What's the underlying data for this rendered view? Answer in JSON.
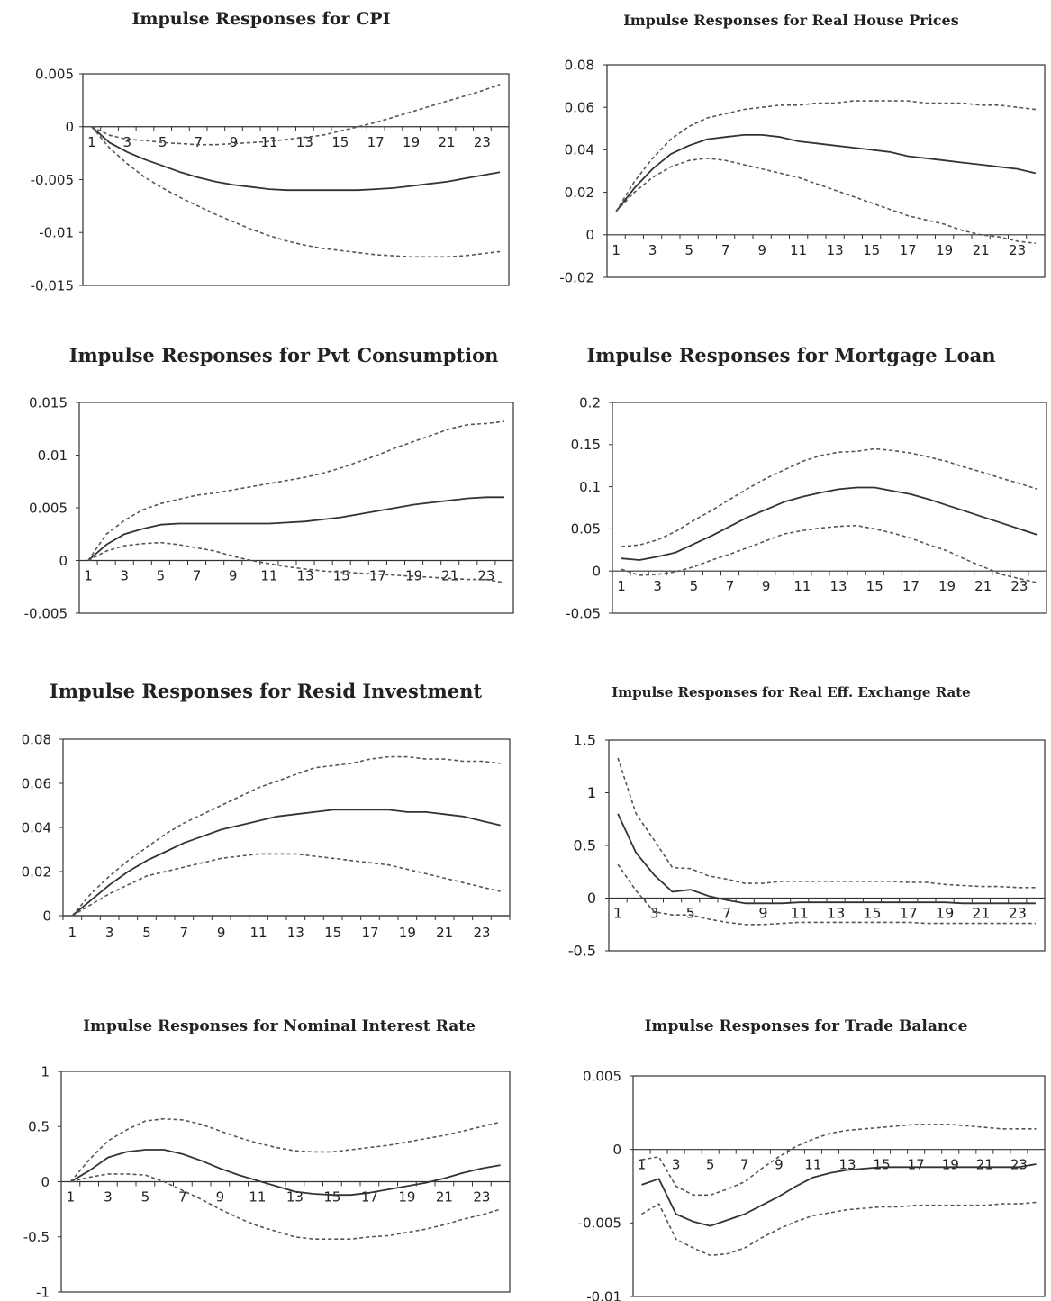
{
  "chart_data": [
    {
      "type": "line",
      "title": "Impulse Responses for CPI",
      "x": [
        1,
        2,
        3,
        4,
        5,
        6,
        7,
        8,
        9,
        10,
        11,
        12,
        13,
        14,
        15,
        16,
        17,
        18,
        19,
        20,
        21,
        22,
        23,
        24
      ],
      "x_ticks": [
        "1",
        "3",
        "5",
        "7",
        "9",
        "11",
        "13",
        "15",
        "17",
        "19",
        "21",
        "23"
      ],
      "y_ticks": [
        "0.005",
        "0",
        "-0.005",
        "-0.01",
        "-0.015"
      ],
      "ylim": [
        -0.015,
        0.005
      ],
      "grid": false,
      "series": [
        {
          "values": [
            0,
            -0.0015,
            -0.0024,
            -0.0031,
            -0.0037,
            -0.0043,
            -0.0048,
            -0.0052,
            -0.0055,
            -0.0057,
            -0.0059,
            -0.006,
            -0.006,
            -0.006,
            -0.006,
            -0.006,
            -0.0059,
            -0.0058,
            -0.0056,
            -0.0054,
            -0.0052,
            -0.0049,
            -0.0046,
            -0.0043
          ]
        },
        {
          "values": [
            0,
            -0.0008,
            -0.0012,
            -0.0013,
            -0.0015,
            -0.0016,
            -0.0017,
            -0.0017,
            -0.0016,
            -0.0015,
            -0.0014,
            -0.0012,
            -0.001,
            -0.0008,
            -0.0004,
            0,
            0.0004,
            0.0009,
            0.0014,
            0.0019,
            0.0024,
            0.0029,
            0.0034,
            0.004
          ]
        },
        {
          "values": [
            0,
            -0.002,
            -0.0035,
            -0.0048,
            -0.0058,
            -0.0067,
            -0.0075,
            -0.0083,
            -0.009,
            -0.0097,
            -0.0103,
            -0.0108,
            -0.0112,
            -0.0115,
            -0.0117,
            -0.0119,
            -0.0121,
            -0.0122,
            -0.0123,
            -0.0123,
            -0.0123,
            -0.0122,
            -0.012,
            -0.0118
          ]
        }
      ]
    },
    {
      "type": "line",
      "title": "Impulse Responses for Real House Prices",
      "x": [
        1,
        2,
        3,
        4,
        5,
        6,
        7,
        8,
        9,
        10,
        11,
        12,
        13,
        14,
        15,
        16,
        17,
        18,
        19,
        20,
        21,
        22,
        23,
        24
      ],
      "x_ticks": [
        "1",
        "3",
        "5",
        "7",
        "9",
        "11",
        "13",
        "15",
        "17",
        "19",
        "21",
        "23"
      ],
      "y_ticks": [
        "0.08",
        "0.06",
        "0.04",
        "0.02",
        "0",
        "-0.02"
      ],
      "ylim": [
        -0.02,
        0.08
      ],
      "grid": false,
      "series": [
        {
          "values": [
            0.011,
            0.022,
            0.031,
            0.038,
            0.042,
            0.045,
            0.046,
            0.047,
            0.047,
            0.046,
            0.044,
            0.043,
            0.042,
            0.041,
            0.04,
            0.039,
            0.037,
            0.036,
            0.035,
            0.034,
            0.033,
            0.032,
            0.031,
            0.029
          ]
        },
        {
          "values": [
            0.011,
            0.025,
            0.036,
            0.045,
            0.051,
            0.055,
            0.057,
            0.059,
            0.06,
            0.061,
            0.061,
            0.062,
            0.062,
            0.063,
            0.063,
            0.063,
            0.063,
            0.062,
            0.062,
            0.062,
            0.061,
            0.061,
            0.06,
            0.059
          ]
        },
        {
          "values": [
            0.011,
            0.02,
            0.027,
            0.032,
            0.035,
            0.036,
            0.035,
            0.033,
            0.031,
            0.029,
            0.027,
            0.024,
            0.021,
            0.018,
            0.015,
            0.012,
            0.009,
            0.007,
            0.005,
            0.002,
            0,
            -0.001,
            -0.003,
            -0.004
          ]
        }
      ]
    },
    {
      "type": "line",
      "title": "Impulse Responses for Pvt Consumption",
      "x": [
        1,
        2,
        3,
        4,
        5,
        6,
        7,
        8,
        9,
        10,
        11,
        12,
        13,
        14,
        15,
        16,
        17,
        18,
        19,
        20,
        21,
        22,
        23,
        24
      ],
      "x_ticks": [
        "1",
        "3",
        "5",
        "7",
        "9",
        "11",
        "13",
        "15",
        "17",
        "19",
        "21",
        "23"
      ],
      "y_ticks": [
        "0.015",
        "0.01",
        "0.005",
        "0",
        "-0.005"
      ],
      "ylim": [
        -0.005,
        0.015
      ],
      "grid": false,
      "series": [
        {
          "values": [
            0,
            0.0015,
            0.0025,
            0.003,
            0.0034,
            0.0035,
            0.0035,
            0.0035,
            0.0035,
            0.0035,
            0.0035,
            0.0036,
            0.0037,
            0.0039,
            0.0041,
            0.0044,
            0.0047,
            0.005,
            0.0053,
            0.0055,
            0.0057,
            0.0059,
            0.006,
            0.006
          ]
        },
        {
          "values": [
            0,
            0.0025,
            0.0038,
            0.0048,
            0.0054,
            0.0058,
            0.0062,
            0.0064,
            0.0067,
            0.007,
            0.0073,
            0.0076,
            0.0079,
            0.0083,
            0.0088,
            0.0094,
            0.01,
            0.0107,
            0.0113,
            0.0119,
            0.0125,
            0.0129,
            0.013,
            0.0132
          ]
        },
        {
          "values": [
            0,
            0.0009,
            0.0014,
            0.0016,
            0.0017,
            0.0015,
            0.0012,
            0.0009,
            0.0004,
            0,
            -0.0003,
            -0.0006,
            -0.0008,
            -0.001,
            -0.0011,
            -0.0012,
            -0.0013,
            -0.0014,
            -0.0015,
            -0.0016,
            -0.0017,
            -0.0018,
            -0.0018,
            -0.0021
          ]
        }
      ]
    },
    {
      "type": "line",
      "title": "Impulse Responses for Mortgage Loan",
      "x": [
        1,
        2,
        3,
        4,
        5,
        6,
        7,
        8,
        9,
        10,
        11,
        12,
        13,
        14,
        15,
        16,
        17,
        18,
        19,
        20,
        21,
        22,
        23,
        24
      ],
      "x_ticks": [
        "1",
        "3",
        "5",
        "7",
        "9",
        "11",
        "13",
        "15",
        "17",
        "19",
        "21",
        "23"
      ],
      "y_ticks": [
        "0.2",
        "0.15",
        "0.1",
        "0.05",
        "0",
        "-0.05"
      ],
      "ylim": [
        -0.05,
        0.2
      ],
      "grid": false,
      "series": [
        {
          "values": [
            0.015,
            0.013,
            0.017,
            0.022,
            0.032,
            0.042,
            0.053,
            0.064,
            0.073,
            0.082,
            0.088,
            0.093,
            0.097,
            0.099,
            0.099,
            0.095,
            0.091,
            0.085,
            0.078,
            0.071,
            0.064,
            0.057,
            0.05,
            0.043
          ]
        },
        {
          "values": [
            0.029,
            0.031,
            0.037,
            0.047,
            0.06,
            0.072,
            0.085,
            0.098,
            0.11,
            0.12,
            0.13,
            0.137,
            0.141,
            0.142,
            0.145,
            0.143,
            0.14,
            0.135,
            0.13,
            0.123,
            0.117,
            0.11,
            0.104,
            0.097
          ]
        },
        {
          "values": [
            0.002,
            -0.005,
            -0.004,
            -0.001,
            0.005,
            0.013,
            0.02,
            0.028,
            0.036,
            0.044,
            0.048,
            0.051,
            0.053,
            0.054,
            0.05,
            0.045,
            0.039,
            0.031,
            0.024,
            0.014,
            0.005,
            -0.004,
            -0.009,
            -0.014
          ]
        }
      ]
    },
    {
      "type": "line",
      "title": "Impulse Responses for Resid Investment",
      "x": [
        1,
        2,
        3,
        4,
        5,
        6,
        7,
        8,
        9,
        10,
        11,
        12,
        13,
        14,
        15,
        16,
        17,
        18,
        19,
        20,
        21,
        22,
        23,
        24
      ],
      "x_ticks": [
        "1",
        "3",
        "5",
        "7",
        "9",
        "11",
        "13",
        "15",
        "17",
        "19",
        "21",
        "23"
      ],
      "y_ticks": [
        "0.08",
        "0.06",
        "0.04",
        "0.02",
        "0"
      ],
      "ylim": [
        0,
        0.08
      ],
      "grid": false,
      "series": [
        {
          "values": [
            0,
            0.007,
            0.014,
            0.02,
            0.025,
            0.029,
            0.033,
            0.036,
            0.039,
            0.041,
            0.043,
            0.045,
            0.046,
            0.047,
            0.048,
            0.048,
            0.048,
            0.048,
            0.047,
            0.047,
            0.046,
            0.045,
            0.043,
            0.041
          ]
        },
        {
          "values": [
            0,
            0.01,
            0.018,
            0.025,
            0.031,
            0.037,
            0.042,
            0.046,
            0.05,
            0.054,
            0.058,
            0.061,
            0.064,
            0.067,
            0.068,
            0.069,
            0.071,
            0.072,
            0.072,
            0.071,
            0.071,
            0.07,
            0.07,
            0.069
          ]
        },
        {
          "values": [
            0,
            0.005,
            0.01,
            0.014,
            0.018,
            0.02,
            0.022,
            0.024,
            0.026,
            0.027,
            0.028,
            0.028,
            0.028,
            0.027,
            0.026,
            0.025,
            0.024,
            0.023,
            0.021,
            0.019,
            0.017,
            0.015,
            0.013,
            0.011
          ]
        }
      ]
    },
    {
      "type": "line",
      "title": "Impulse Responses for Real Eff. Exchange Rate",
      "x": [
        1,
        2,
        3,
        4,
        5,
        6,
        7,
        8,
        9,
        10,
        11,
        12,
        13,
        14,
        15,
        16,
        17,
        18,
        19,
        20,
        21,
        22,
        23,
        24
      ],
      "x_ticks": [
        "1",
        "3",
        "5",
        "7",
        "9",
        "11",
        "13",
        "15",
        "17",
        "19",
        "21",
        "23"
      ],
      "y_ticks": [
        "1.5",
        "1",
        "0.5",
        "0",
        "-0.5"
      ],
      "ylim": [
        -0.5,
        1.5
      ],
      "grid": false,
      "series": [
        {
          "values": [
            0.8,
            0.43,
            0.22,
            0.06,
            0.08,
            0.02,
            -0.02,
            -0.05,
            -0.05,
            -0.05,
            -0.04,
            -0.04,
            -0.04,
            -0.04,
            -0.04,
            -0.04,
            -0.04,
            -0.04,
            -0.04,
            -0.05,
            -0.05,
            -0.05,
            -0.05,
            -0.05
          ]
        },
        {
          "values": [
            1.33,
            0.8,
            0.55,
            0.29,
            0.28,
            0.21,
            0.18,
            0.14,
            0.14,
            0.16,
            0.16,
            0.16,
            0.16,
            0.16,
            0.16,
            0.16,
            0.15,
            0.15,
            0.13,
            0.12,
            0.11,
            0.11,
            0.1,
            0.1
          ]
        },
        {
          "values": [
            0.32,
            0.07,
            -0.13,
            -0.16,
            -0.16,
            -0.2,
            -0.23,
            -0.25,
            -0.25,
            -0.24,
            -0.23,
            -0.23,
            -0.23,
            -0.23,
            -0.23,
            -0.23,
            -0.23,
            -0.24,
            -0.24,
            -0.24,
            -0.24,
            -0.24,
            -0.24,
            -0.24
          ]
        }
      ]
    },
    {
      "type": "line",
      "title": "Impulse Responses for Nominal Interest Rate",
      "x": [
        1,
        2,
        3,
        4,
        5,
        6,
        7,
        8,
        9,
        10,
        11,
        12,
        13,
        14,
        15,
        16,
        17,
        18,
        19,
        20,
        21,
        22,
        23,
        24
      ],
      "x_ticks": [
        "1",
        "3",
        "5",
        "7",
        "9",
        "11",
        "13",
        "15",
        "17",
        "19",
        "21",
        "23"
      ],
      "y_ticks": [
        "1",
        "0.5",
        "0",
        "-0.5",
        "-1"
      ],
      "ylim": [
        -1,
        1
      ],
      "grid": false,
      "series": [
        {
          "values": [
            0,
            0.1,
            0.22,
            0.27,
            0.29,
            0.29,
            0.25,
            0.19,
            0.12,
            0.06,
            0.01,
            -0.04,
            -0.09,
            -0.11,
            -0.12,
            -0.12,
            -0.1,
            -0.07,
            -0.04,
            -0.01,
            0.03,
            0.08,
            0.12,
            0.15
          ]
        },
        {
          "values": [
            0,
            0.2,
            0.37,
            0.47,
            0.55,
            0.57,
            0.56,
            0.52,
            0.46,
            0.4,
            0.35,
            0.31,
            0.28,
            0.27,
            0.27,
            0.29,
            0.31,
            0.33,
            0.36,
            0.39,
            0.42,
            0.46,
            0.5,
            0.54
          ]
        },
        {
          "values": [
            0,
            0.04,
            0.07,
            0.07,
            0.06,
            0,
            -0.08,
            -0.16,
            -0.25,
            -0.33,
            -0.4,
            -0.45,
            -0.5,
            -0.52,
            -0.52,
            -0.52,
            -0.5,
            -0.49,
            -0.46,
            -0.43,
            -0.39,
            -0.34,
            -0.3,
            -0.25
          ]
        }
      ]
    },
    {
      "type": "line",
      "title": "Impulse Responses for Trade Balance",
      "x": [
        1,
        2,
        3,
        4,
        5,
        6,
        7,
        8,
        9,
        10,
        11,
        12,
        13,
        14,
        15,
        16,
        17,
        18,
        19,
        20,
        21,
        22,
        23,
        24
      ],
      "x_ticks": [
        "1",
        "3",
        "5",
        "7",
        "9",
        "11",
        "13",
        "15",
        "17",
        "19",
        "21",
        "23"
      ],
      "y_ticks": [
        "0.005",
        "0",
        "-0.005",
        "-0.01"
      ],
      "ylim": [
        -0.01,
        0.005
      ],
      "grid": false,
      "series": [
        {
          "values": [
            -0.0024,
            -0.002,
            -0.0044,
            -0.0049,
            -0.0052,
            -0.0048,
            -0.0044,
            -0.0038,
            -0.0032,
            -0.0025,
            -0.0019,
            -0.0016,
            -0.0014,
            -0.0013,
            -0.0012,
            -0.0012,
            -0.0012,
            -0.0012,
            -0.0012,
            -0.0012,
            -0.0012,
            -0.0012,
            -0.0012,
            -0.001
          ]
        },
        {
          "values": [
            -0.0007,
            -0.0005,
            -0.0025,
            -0.0031,
            -0.0031,
            -0.0027,
            -0.0022,
            -0.0013,
            -0.0005,
            0.0002,
            0.0007,
            0.0011,
            0.0013,
            0.0014,
            0.0015,
            0.0016,
            0.0017,
            0.0017,
            0.0017,
            0.0016,
            0.0015,
            0.0014,
            0.0014,
            0.0014
          ]
        },
        {
          "values": [
            -0.0044,
            -0.0037,
            -0.0061,
            -0.0067,
            -0.0072,
            -0.0071,
            -0.0067,
            -0.006,
            -0.0054,
            -0.0049,
            -0.0045,
            -0.0043,
            -0.0041,
            -0.004,
            -0.0039,
            -0.0039,
            -0.0038,
            -0.0038,
            -0.0038,
            -0.0038,
            -0.0038,
            -0.0037,
            -0.0037,
            -0.0036
          ]
        }
      ]
    }
  ]
}
